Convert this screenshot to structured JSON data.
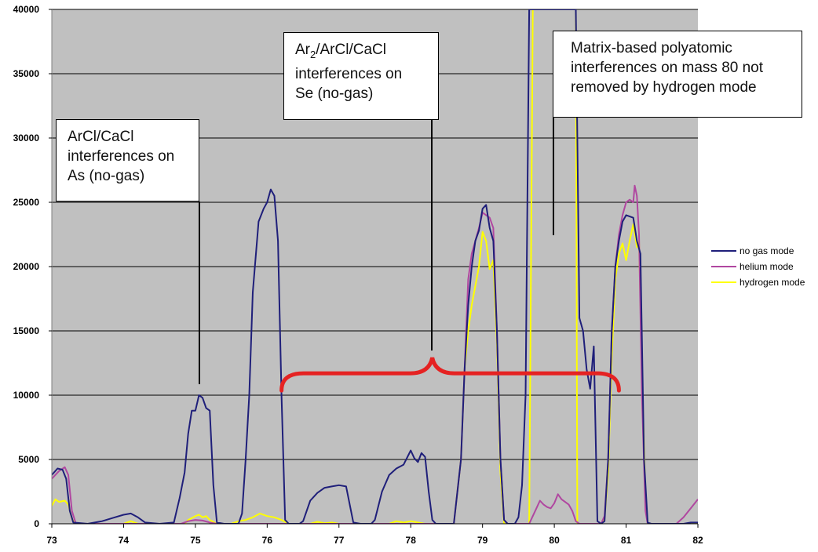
{
  "chart_data": {
    "type": "line",
    "title": "",
    "xlabel": "",
    "ylabel": "",
    "xlim": [
      73,
      82
    ],
    "ylim": [
      0,
      40000
    ],
    "x_ticks": [
      "73",
      "74",
      "75",
      "76",
      "77",
      "78",
      "79",
      "80",
      "81",
      "82"
    ],
    "y_ticks": [
      "0",
      "5000",
      "10000",
      "15000",
      "20000",
      "25000",
      "30000",
      "35000",
      "40000"
    ],
    "grid": "horizontal",
    "background": "#c0c0c0",
    "legend": "right",
    "series": [
      {
        "name": "no gas mode",
        "color": "#1f1f7a",
        "points": [
          [
            73,
            3800
          ],
          [
            73.08,
            4300
          ],
          [
            73.15,
            4200
          ],
          [
            73.2,
            3500
          ],
          [
            73.25,
            1000
          ],
          [
            73.3,
            100
          ],
          [
            73.5,
            0
          ],
          [
            73.7,
            200
          ],
          [
            73.85,
            450
          ],
          [
            74.0,
            700
          ],
          [
            74.1,
            800
          ],
          [
            74.2,
            500
          ],
          [
            74.3,
            100
          ],
          [
            74.5,
            0
          ],
          [
            74.7,
            100
          ],
          [
            74.78,
            2000
          ],
          [
            74.85,
            4000
          ],
          [
            74.9,
            7000
          ],
          [
            74.95,
            8800
          ],
          [
            75.0,
            8800
          ],
          [
            75.05,
            10000
          ],
          [
            75.1,
            9800
          ],
          [
            75.15,
            9000
          ],
          [
            75.2,
            8800
          ],
          [
            75.25,
            3000
          ],
          [
            75.3,
            100
          ],
          [
            75.4,
            0
          ],
          [
            75.6,
            0
          ],
          [
            75.65,
            800
          ],
          [
            75.7,
            5000
          ],
          [
            75.75,
            10000
          ],
          [
            75.8,
            18000
          ],
          [
            75.88,
            23500
          ],
          [
            75.95,
            24500
          ],
          [
            76.0,
            25000
          ],
          [
            76.05,
            26000
          ],
          [
            76.1,
            25500
          ],
          [
            76.15,
            22000
          ],
          [
            76.2,
            10000
          ],
          [
            76.25,
            300
          ],
          [
            76.3,
            0
          ],
          [
            76.45,
            0
          ],
          [
            76.5,
            200
          ],
          [
            76.6,
            1800
          ],
          [
            76.7,
            2400
          ],
          [
            76.8,
            2800
          ],
          [
            76.9,
            2900
          ],
          [
            77.0,
            3000
          ],
          [
            77.1,
            2900
          ],
          [
            77.15,
            1500
          ],
          [
            77.2,
            100
          ],
          [
            77.3,
            0
          ],
          [
            77.45,
            0
          ],
          [
            77.5,
            300
          ],
          [
            77.6,
            2500
          ],
          [
            77.7,
            3800
          ],
          [
            77.8,
            4300
          ],
          [
            77.9,
            4600
          ],
          [
            78.0,
            5700
          ],
          [
            78.05,
            5100
          ],
          [
            78.1,
            4800
          ],
          [
            78.15,
            5500
          ],
          [
            78.2,
            5200
          ],
          [
            78.25,
            2500
          ],
          [
            78.3,
            300
          ],
          [
            78.35,
            0
          ],
          [
            78.6,
            0
          ],
          [
            78.7,
            5000
          ],
          [
            78.75,
            12000
          ],
          [
            78.8,
            17000
          ],
          [
            78.85,
            20000
          ],
          [
            78.9,
            22000
          ],
          [
            78.95,
            22800
          ],
          [
            79.0,
            24500
          ],
          [
            79.05,
            24800
          ],
          [
            79.1,
            23000
          ],
          [
            79.15,
            22000
          ],
          [
            79.2,
            15000
          ],
          [
            79.25,
            5000
          ],
          [
            79.3,
            300
          ],
          [
            79.35,
            0
          ],
          [
            79.45,
            0
          ],
          [
            79.5,
            500
          ],
          [
            79.55,
            3000
          ],
          [
            79.6,
            10000
          ],
          [
            79.65,
            40000
          ],
          [
            79.7,
            40000
          ],
          [
            80.3,
            40000
          ],
          [
            80.35,
            16000
          ],
          [
            80.4,
            15000
          ],
          [
            80.45,
            12000
          ],
          [
            80.5,
            10500
          ],
          [
            80.55,
            13800
          ],
          [
            80.6,
            200
          ],
          [
            80.65,
            0
          ],
          [
            80.7,
            200
          ],
          [
            80.75,
            5000
          ],
          [
            80.8,
            15000
          ],
          [
            80.85,
            20000
          ],
          [
            80.9,
            22000
          ],
          [
            80.95,
            23500
          ],
          [
            81.0,
            24000
          ],
          [
            81.1,
            23800
          ],
          [
            81.15,
            22000
          ],
          [
            81.2,
            21000
          ],
          [
            81.25,
            5000
          ],
          [
            81.3,
            100
          ],
          [
            81.35,
            0
          ],
          [
            81.8,
            0
          ],
          [
            81.9,
            100
          ],
          [
            82.0,
            100
          ]
        ]
      },
      {
        "name": "helium mode",
        "color": "#b047a0",
        "points": [
          [
            73,
            3500
          ],
          [
            73.1,
            4100
          ],
          [
            73.18,
            4400
          ],
          [
            73.23,
            3800
          ],
          [
            73.28,
            1000
          ],
          [
            73.33,
            100
          ],
          [
            73.4,
            0
          ],
          [
            74.6,
            0
          ],
          [
            74.8,
            0
          ],
          [
            74.9,
            200
          ],
          [
            75.0,
            300
          ],
          [
            75.1,
            250
          ],
          [
            75.2,
            100
          ],
          [
            75.3,
            0
          ],
          [
            78.6,
            0
          ],
          [
            78.7,
            5000
          ],
          [
            78.75,
            12000
          ],
          [
            78.8,
            19000
          ],
          [
            78.85,
            21000
          ],
          [
            78.9,
            22000
          ],
          [
            78.95,
            23000
          ],
          [
            79.0,
            24200
          ],
          [
            79.05,
            24000
          ],
          [
            79.1,
            23800
          ],
          [
            79.15,
            23000
          ],
          [
            79.2,
            15000
          ],
          [
            79.25,
            5000
          ],
          [
            79.3,
            300
          ],
          [
            79.35,
            0
          ],
          [
            79.65,
            0
          ],
          [
            79.7,
            600
          ],
          [
            79.75,
            1200
          ],
          [
            79.8,
            1800
          ],
          [
            79.85,
            1500
          ],
          [
            79.9,
            1300
          ],
          [
            79.95,
            1200
          ],
          [
            80.0,
            1600
          ],
          [
            80.05,
            2300
          ],
          [
            80.1,
            1900
          ],
          [
            80.15,
            1700
          ],
          [
            80.2,
            1500
          ],
          [
            80.25,
            1000
          ],
          [
            80.3,
            200
          ],
          [
            80.35,
            0
          ],
          [
            80.65,
            0
          ],
          [
            80.7,
            600
          ],
          [
            80.75,
            5000
          ],
          [
            80.8,
            15000
          ],
          [
            80.85,
            20000
          ],
          [
            80.9,
            22500
          ],
          [
            80.95,
            24000
          ],
          [
            81.0,
            25000
          ],
          [
            81.05,
            25200
          ],
          [
            81.1,
            25000
          ],
          [
            81.12,
            26300
          ],
          [
            81.15,
            25500
          ],
          [
            81.18,
            22500
          ],
          [
            81.22,
            10000
          ],
          [
            81.27,
            1000
          ],
          [
            81.3,
            0
          ],
          [
            81.7,
            0
          ],
          [
            81.8,
            500
          ],
          [
            81.9,
            1200
          ],
          [
            82.0,
            1900
          ]
        ]
      },
      {
        "name": "hydrogen mode",
        "color": "#ffff00",
        "points": [
          [
            73,
            1400
          ],
          [
            73.05,
            1900
          ],
          [
            73.1,
            1700
          ],
          [
            73.18,
            1800
          ],
          [
            73.23,
            1500
          ],
          [
            73.28,
            400
          ],
          [
            73.32,
            0
          ],
          [
            74.0,
            0
          ],
          [
            74.1,
            200
          ],
          [
            74.2,
            0
          ],
          [
            74.85,
            0
          ],
          [
            74.9,
            300
          ],
          [
            75.0,
            600
          ],
          [
            75.05,
            700
          ],
          [
            75.1,
            500
          ],
          [
            75.15,
            600
          ],
          [
            75.2,
            300
          ],
          [
            75.3,
            0
          ],
          [
            75.5,
            0
          ],
          [
            75.6,
            200
          ],
          [
            75.7,
            300
          ],
          [
            75.8,
            500
          ],
          [
            75.9,
            800
          ],
          [
            76.0,
            600
          ],
          [
            76.1,
            500
          ],
          [
            76.2,
            300
          ],
          [
            76.3,
            0
          ],
          [
            76.6,
            0
          ],
          [
            76.7,
            150
          ],
          [
            76.8,
            50
          ],
          [
            76.9,
            100
          ],
          [
            77.0,
            0
          ],
          [
            77.7,
            0
          ],
          [
            77.8,
            200
          ],
          [
            77.9,
            100
          ],
          [
            78.0,
            200
          ],
          [
            78.1,
            100
          ],
          [
            78.2,
            0
          ],
          [
            78.6,
            0
          ],
          [
            78.7,
            5000
          ],
          [
            78.75,
            12000
          ],
          [
            78.8,
            15000
          ],
          [
            78.85,
            17000
          ],
          [
            78.9,
            18500
          ],
          [
            78.95,
            20000
          ],
          [
            79.0,
            22700
          ],
          [
            79.05,
            22000
          ],
          [
            79.1,
            19800
          ],
          [
            79.15,
            20500
          ],
          [
            79.2,
            14000
          ],
          [
            79.25,
            4000
          ],
          [
            79.3,
            0
          ],
          [
            79.65,
            0
          ],
          [
            79.7,
            40000
          ],
          [
            80.3,
            40000
          ],
          [
            80.32,
            0
          ],
          [
            80.65,
            0
          ],
          [
            80.7,
            400
          ],
          [
            80.75,
            4000
          ],
          [
            80.8,
            13000
          ],
          [
            80.85,
            19000
          ],
          [
            80.9,
            21000
          ],
          [
            80.95,
            21800
          ],
          [
            81.0,
            20500
          ],
          [
            81.05,
            22000
          ],
          [
            81.1,
            23300
          ],
          [
            81.15,
            21500
          ],
          [
            81.18,
            22000
          ],
          [
            81.22,
            12000
          ],
          [
            81.27,
            2000
          ],
          [
            81.3,
            0
          ],
          [
            82.0,
            0
          ]
        ]
      }
    ],
    "annotations": [
      {
        "id": "as",
        "line1": "ArCl/CaCl",
        "line2": "interferences on",
        "line3": "As (no-gas)"
      },
      {
        "id": "se",
        "formula_base": "Ar",
        "formula_sub": "2",
        "formula_rest": "/ArCl/CaCl",
        "line2": "interferences on",
        "line3": "Se (no-gas)"
      },
      {
        "id": "matrix",
        "line1": "Matrix-based polyatomic",
        "line2": "interferences on mass 80 not",
        "line3": "removed by hydrogen mode"
      }
    ],
    "brace": {
      "x_start": 76.2,
      "x_end": 80.9,
      "x_peak": 78.3,
      "y": 11700,
      "color": "#e52222"
    }
  }
}
